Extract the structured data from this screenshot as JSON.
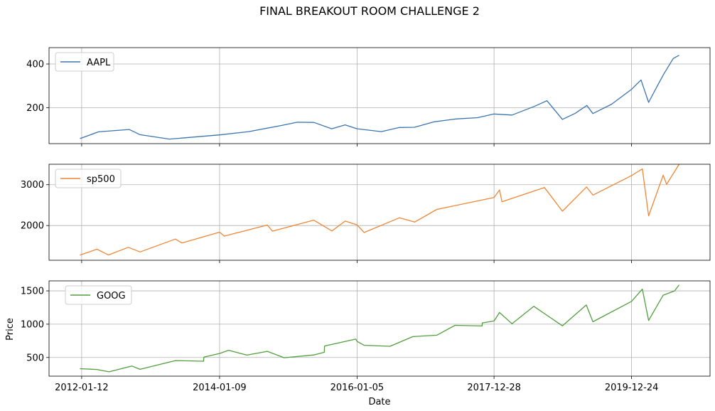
{
  "chart_data": {
    "type": "line",
    "title": "FINAL BREAKOUT ROOM CHALLENGE 2",
    "xlabel": "Date",
    "ylabel": "Price",
    "grid": true,
    "x_range": [
      "2012-01-03",
      "2020-08-31"
    ],
    "x_ticks": [
      "2012-01-12",
      "2014-01-09",
      "2016-01-05",
      "2017-12-28",
      "2019-12-24"
    ],
    "panels": [
      {
        "series": [
          {
            "name": "AAPL",
            "color": "#3b75af",
            "points": [
              [
                "2012-01-03",
                58
              ],
              [
                "2012-04-10",
                89
              ],
              [
                "2012-09-19",
                100
              ],
              [
                "2012-11-15",
                76
              ],
              [
                "2013-04-19",
                56
              ],
              [
                "2013-09-20",
                67
              ],
              [
                "2014-01-09",
                75
              ],
              [
                "2014-06-12",
                90
              ],
              [
                "2014-12-01",
                118
              ],
              [
                "2015-02-23",
                133
              ],
              [
                "2015-05-22",
                132
              ],
              [
                "2015-08-24",
                103
              ],
              [
                "2015-11-03",
                121
              ],
              [
                "2016-01-05",
                103
              ],
              [
                "2016-05-12",
                90
              ],
              [
                "2016-08-15",
                109
              ],
              [
                "2016-11-03",
                110
              ],
              [
                "2017-02-15",
                135
              ],
              [
                "2017-06-09",
                148
              ],
              [
                "2017-10-02",
                154
              ],
              [
                "2017-12-28",
                171
              ],
              [
                "2018-04-02",
                166
              ],
              [
                "2018-08-02",
                207
              ],
              [
                "2018-10-03",
                232
              ],
              [
                "2018-12-24",
                146
              ],
              [
                "2019-03-01",
                174
              ],
              [
                "2019-05-02",
                210
              ],
              [
                "2019-06-03",
                173
              ],
              [
                "2019-09-10",
                216
              ],
              [
                "2019-12-24",
                284
              ],
              [
                "2020-02-12",
                327
              ],
              [
                "2020-03-23",
                224
              ],
              [
                "2020-05-04",
                293
              ],
              [
                "2020-06-10",
                352
              ],
              [
                "2020-07-31",
                425
              ],
              [
                "2020-08-31",
                440
              ]
            ]
          }
        ],
        "ylim": [
          35,
          475
        ],
        "y_ticks": [
          200,
          400
        ],
        "legend_position": "upper-left"
      },
      {
        "series": [
          {
            "name": "sp500",
            "color": "#ee8636",
            "points": [
              [
                "2012-01-03",
                1277
              ],
              [
                "2012-04-02",
                1419
              ],
              [
                "2012-06-01",
                1278
              ],
              [
                "2012-09-14",
                1466
              ],
              [
                "2012-11-15",
                1353
              ],
              [
                "2013-05-21",
                1669
              ],
              [
                "2013-06-24",
                1573
              ],
              [
                "2014-01-09",
                1838
              ],
              [
                "2014-02-03",
                1741
              ],
              [
                "2014-09-18",
                2011
              ],
              [
                "2014-10-15",
                1862
              ],
              [
                "2015-05-21",
                2131
              ],
              [
                "2015-08-25",
                1867
              ],
              [
                "2015-11-03",
                2109
              ],
              [
                "2016-01-05",
                2016
              ],
              [
                "2016-02-11",
                1829
              ],
              [
                "2016-08-15",
                2190
              ],
              [
                "2016-11-04",
                2085
              ],
              [
                "2017-03-01",
                2395
              ],
              [
                "2017-12-28",
                2687
              ],
              [
                "2018-01-26",
                2872
              ],
              [
                "2018-02-08",
                2581
              ],
              [
                "2018-09-20",
                2930
              ],
              [
                "2018-12-24",
                2351
              ],
              [
                "2019-04-30",
                2945
              ],
              [
                "2019-06-03",
                2744
              ],
              [
                "2019-12-24",
                3223
              ],
              [
                "2020-02-19",
                3386
              ],
              [
                "2020-03-23",
                2237
              ],
              [
                "2020-06-08",
                3232
              ],
              [
                "2020-06-26",
                3009
              ],
              [
                "2020-08-31",
                3500
              ]
            ]
          }
        ],
        "ylim": [
          1150,
          3500
        ],
        "y_ticks": [
          2000,
          3000
        ],
        "legend_position": "upper-left"
      },
      {
        "series": [
          {
            "name": "GOOG",
            "color": "#519e3e",
            "points": [
              [
                "2012-01-03",
                332
              ],
              [
                "2012-04-02",
                320
              ],
              [
                "2012-06-04",
                285
              ],
              [
                "2012-10-04",
                372
              ],
              [
                "2012-11-15",
                322
              ],
              [
                "2013-05-21",
                454
              ],
              [
                "2013-10-17",
                444
              ],
              [
                "2013-10-18",
                506
              ],
              [
                "2014-01-09",
                560
              ],
              [
                "2014-02-26",
                608
              ],
              [
                "2014-06-02",
                536
              ],
              [
                "2014-09-18",
                592
              ],
              [
                "2014-12-16",
                496
              ],
              [
                "2015-05-21",
                538
              ],
              [
                "2015-07-16",
                579
              ],
              [
                "2015-07-17",
                672
              ],
              [
                "2015-12-29",
                776
              ],
              [
                "2016-01-05",
                742
              ],
              [
                "2016-02-11",
                683
              ],
              [
                "2016-06-27",
                668
              ],
              [
                "2016-10-25",
                813
              ],
              [
                "2017-03-01",
                835
              ],
              [
                "2017-06-05",
                983
              ],
              [
                "2017-10-26",
                973
              ],
              [
                "2017-10-27",
                1019
              ],
              [
                "2017-12-28",
                1048
              ],
              [
                "2018-01-26",
                1175
              ],
              [
                "2018-04-02",
                1006
              ],
              [
                "2018-07-26",
                1268
              ],
              [
                "2018-12-24",
                976
              ],
              [
                "2019-04-29",
                1288
              ],
              [
                "2019-06-03",
                1036
              ],
              [
                "2019-12-24",
                1343
              ],
              [
                "2020-02-19",
                1526
              ],
              [
                "2020-03-23",
                1056
              ],
              [
                "2020-06-08",
                1436
              ],
              [
                "2020-08-07",
                1500
              ],
              [
                "2020-08-31",
                1590
              ]
            ]
          }
        ],
        "ylim": [
          220,
          1650
        ],
        "y_ticks": [
          500,
          1000,
          1500
        ],
        "legend_position": "upper-center"
      }
    ]
  }
}
